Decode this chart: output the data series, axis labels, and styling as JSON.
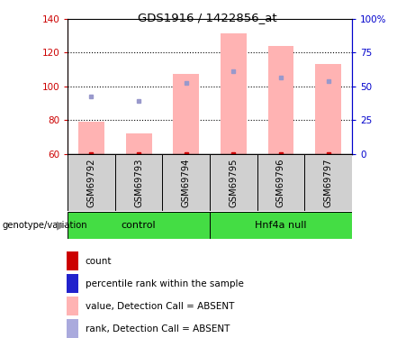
{
  "title": "GDS1916 / 1422856_at",
  "samples": [
    "GSM69792",
    "GSM69793",
    "GSM69794",
    "GSM69795",
    "GSM69796",
    "GSM69797"
  ],
  "bar_bottoms": [
    60,
    60,
    60,
    60,
    60,
    60
  ],
  "bar_tops": [
    79,
    72,
    107,
    131,
    124,
    113
  ],
  "blue_dots_y": [
    94,
    91,
    102,
    109,
    105,
    103
  ],
  "ylim_left": [
    60,
    140
  ],
  "ylim_right": [
    0,
    100
  ],
  "yticks_left": [
    60,
    80,
    100,
    120,
    140
  ],
  "yticks_right": [
    0,
    25,
    50,
    75,
    100
  ],
  "ytick_labels_right": [
    "0",
    "25",
    "50",
    "75",
    "100%"
  ],
  "hgrid_lines": [
    80,
    100,
    120
  ],
  "bar_color": "#ffb3b3",
  "blue_dot_color": "#9999cc",
  "red_dot_color": "#cc0000",
  "left_axis_color": "#cc0000",
  "right_axis_color": "#0000cc",
  "green_color": "#44dd44",
  "gray_color": "#d0d0d0",
  "legend_labels": [
    "count",
    "percentile rank within the sample",
    "value, Detection Call = ABSENT",
    "rank, Detection Call = ABSENT"
  ],
  "legend_colors": [
    "#cc0000",
    "#2222cc",
    "#ffb3b3",
    "#aaaadd"
  ]
}
